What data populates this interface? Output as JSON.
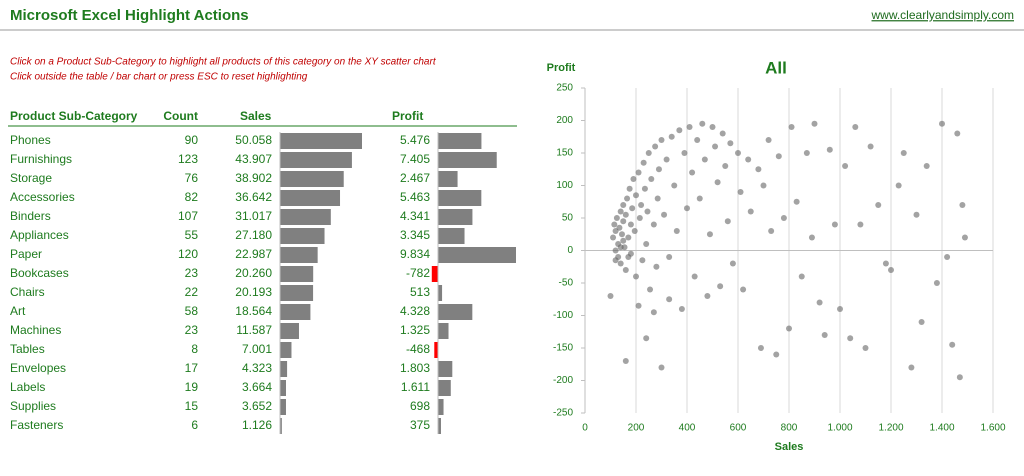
{
  "header": {
    "title": "Microsoft Excel Highlight Actions",
    "link": "www.clearlyandsimply.com"
  },
  "instructions": [
    "Click on a Product Sub-Category to highlight all products of this category on the XY scatter chart",
    "Click outside the table / bar chart or press ESC to reset highlighting"
  ],
  "table": {
    "columns": [
      "Product Sub-Category",
      "Count",
      "Sales",
      "Profit"
    ],
    "categories": [
      "Phones",
      "Furnishings",
      "Storage",
      "Accessories",
      "Binders",
      "Appliances",
      "Paper",
      "Bookcases",
      "Chairs",
      "Art",
      "Machines",
      "Tables",
      "Envelopes",
      "Labels",
      "Supplies",
      "Fasteners"
    ],
    "counts": [
      90,
      123,
      76,
      82,
      107,
      55,
      120,
      23,
      22,
      58,
      23,
      8,
      17,
      19,
      15,
      6
    ],
    "sales": {
      "values": [
        50058,
        43907,
        38902,
        36642,
        31017,
        27180,
        22987,
        20260,
        20193,
        18564,
        11587,
        7001,
        4323,
        3664,
        3652,
        1126
      ],
      "value_labels": [
        "50.058",
        "43.907",
        "38.902",
        "36.642",
        "31.017",
        "27.180",
        "22.987",
        "20.260",
        "20.193",
        "18.564",
        "11.587",
        "7.001",
        "4.323",
        "3.664",
        "3.652",
        "1.126"
      ]
    },
    "profit": {
      "values": [
        5476,
        7405,
        2467,
        5463,
        4341,
        3345,
        9834,
        -782,
        513,
        4328,
        1325,
        -468,
        1803,
        1611,
        698,
        375
      ],
      "value_labels": [
        "5.476",
        "7.405",
        "2.467",
        "5.463",
        "4.341",
        "3.345",
        "9.834",
        "-782",
        "513",
        "4.328",
        "1.325",
        "-468",
        "1.803",
        "1.611",
        "698",
        "375"
      ]
    },
    "color": "#808080",
    "negative_color": "#ff0000"
  },
  "chart_data": {
    "type": "scatter",
    "title": "All",
    "x_label": "Sales",
    "y_label": "Profit",
    "color": "#666666",
    "xlim": [
      0,
      1600
    ],
    "ylim": [
      -250,
      250
    ],
    "xticks": [
      0,
      200,
      400,
      600,
      800,
      {
        "value": 1000,
        "label": "1.000"
      },
      {
        "value": 1200,
        "label": "1.200"
      },
      {
        "value": 1400,
        "label": "1.400"
      },
      {
        "value": 1600,
        "label": "1.600"
      }
    ],
    "yticks": [
      -250,
      -200,
      -150,
      -100,
      -50,
      0,
      50,
      100,
      150,
      200,
      250
    ],
    "grid": "x",
    "x": [
      100,
      110,
      115,
      120,
      120,
      125,
      130,
      130,
      135,
      140,
      140,
      145,
      150,
      150,
      155,
      160,
      160,
      165,
      170,
      175,
      180,
      180,
      185,
      190,
      195,
      200,
      200,
      210,
      215,
      220,
      225,
      230,
      235,
      240,
      245,
      250,
      255,
      260,
      270,
      275,
      280,
      285,
      290,
      300,
      300,
      310,
      320,
      330,
      340,
      350,
      360,
      370,
      380,
      390,
      400,
      410,
      420,
      430,
      440,
      450,
      460,
      470,
      480,
      490,
      500,
      510,
      520,
      530,
      540,
      550,
      560,
      570,
      580,
      600,
      610,
      620,
      640,
      650,
      680,
      690,
      700,
      720,
      730,
      750,
      760,
      780,
      800,
      810,
      830,
      850,
      870,
      890,
      900,
      920,
      940,
      960,
      980,
      1000,
      1020,
      1040,
      1060,
      1080,
      1100,
      1120,
      1150,
      1180,
      1200,
      1230,
      1250,
      1280,
      1300,
      1320,
      1340,
      1380,
      1400,
      1420,
      1440,
      1460,
      1470,
      1480,
      1490,
      160,
      240,
      270,
      120,
      140,
      170,
      150,
      210,
      330
    ],
    "y": [
      -70,
      20,
      40,
      0,
      30,
      50,
      -10,
      10,
      35,
      60,
      -20,
      25,
      45,
      70,
      5,
      -30,
      55,
      80,
      20,
      95,
      40,
      -5,
      65,
      110,
      30,
      85,
      -40,
      120,
      50,
      70,
      -15,
      135,
      95,
      10,
      60,
      150,
      -60,
      110,
      40,
      160,
      -25,
      80,
      125,
      170,
      -180,
      55,
      140,
      -10,
      175,
      100,
      30,
      185,
      -90,
      150,
      65,
      190,
      120,
      -40,
      170,
      80,
      195,
      140,
      -70,
      25,
      190,
      160,
      105,
      -55,
      180,
      130,
      45,
      165,
      -20,
      150,
      90,
      -60,
      140,
      60,
      125,
      -150,
      100,
      170,
      30,
      -160,
      145,
      50,
      -120,
      190,
      75,
      -40,
      150,
      20,
      195,
      -80,
      -130,
      155,
      40,
      -90,
      130,
      -135,
      190,
      40,
      -150,
      160,
      70,
      -20,
      -30,
      100,
      150,
      -180,
      55,
      -110,
      130,
      -50,
      195,
      -10,
      -145,
      180,
      -195,
      70,
      20,
      -170,
      -135,
      -95,
      -15,
      5,
      -10,
      15,
      -85,
      -75
    ]
  }
}
